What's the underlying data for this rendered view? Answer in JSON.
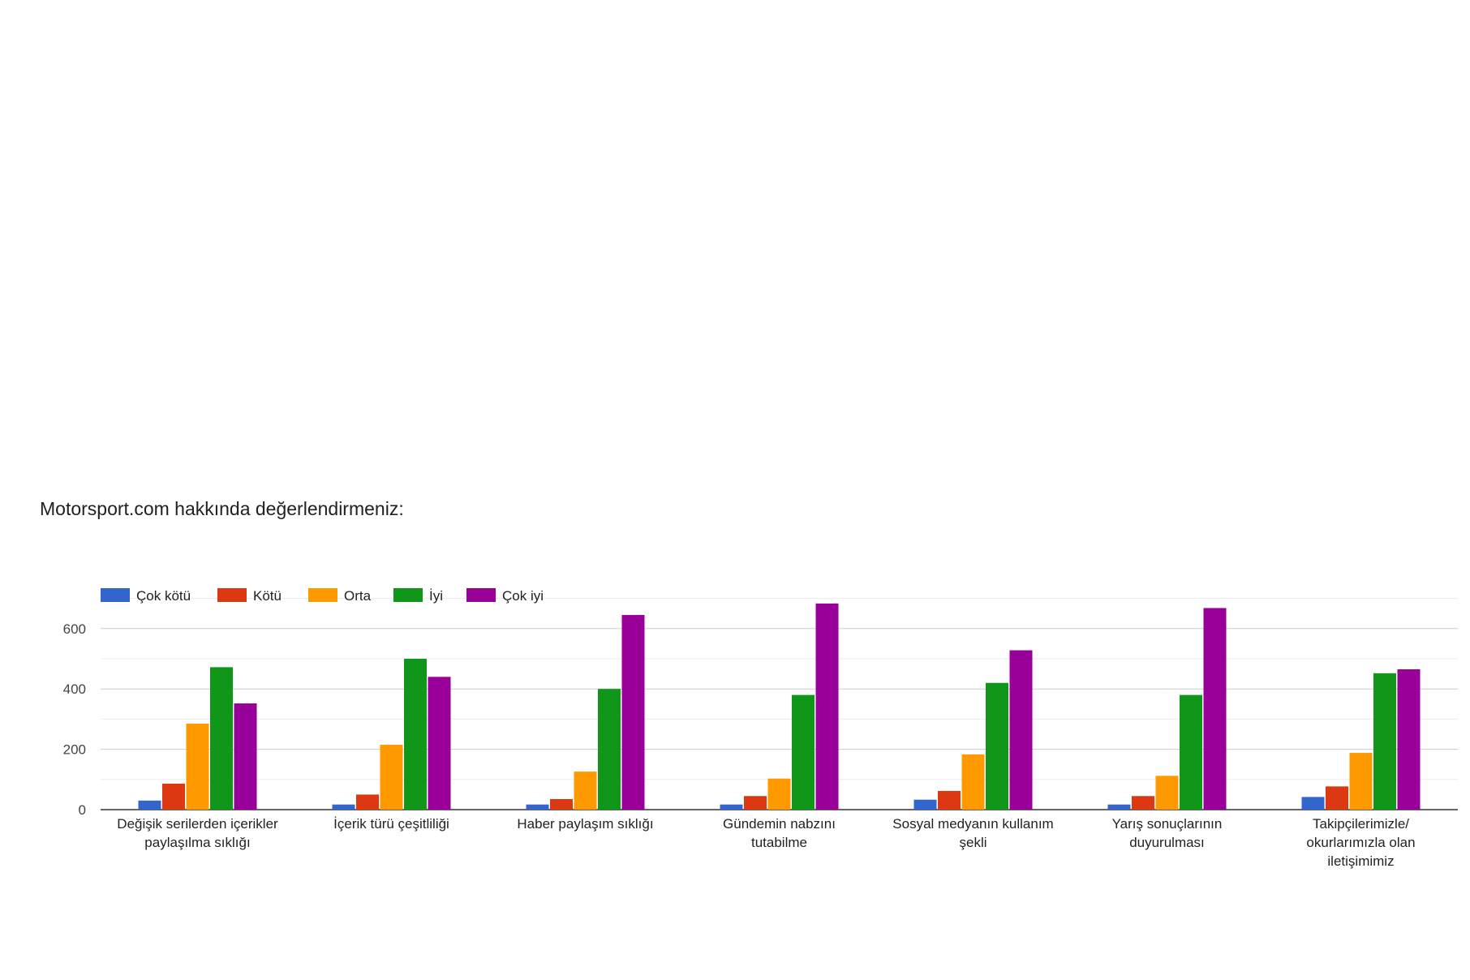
{
  "title": "Motorsport.com hakkında değerlendirmeniz:",
  "chart_data": {
    "type": "bar",
    "categories": [
      [
        "Değişik serilerden içerikler",
        "paylaşılma sıklığı"
      ],
      [
        "İçerik türü çeşitliliği"
      ],
      [
        "Haber paylaşım sıklığı"
      ],
      [
        "Gündemin nabzını",
        "tutabilme"
      ],
      [
        "Sosyal medyanın kullanım",
        "şekli"
      ],
      [
        "Yarış sonuçlarının",
        "duyurulması"
      ],
      [
        "Takipçilerimizle/",
        "okurlarımızla olan",
        "iletişimimiz"
      ]
    ],
    "series": [
      {
        "name": "Çok kötü",
        "color": "#3366cc",
        "values": [
          30,
          17,
          17,
          17,
          33,
          17,
          42
        ]
      },
      {
        "name": "Kötü",
        "color": "#dc3912",
        "values": [
          86,
          50,
          35,
          45,
          62,
          45,
          77
        ]
      },
      {
        "name": "Orta",
        "color": "#ff9900",
        "values": [
          285,
          215,
          126,
          103,
          183,
          112,
          188
        ]
      },
      {
        "name": "İyi",
        "color": "#109618",
        "values": [
          472,
          500,
          400,
          380,
          420,
          380,
          452
        ]
      },
      {
        "name": "Çok iyi",
        "color": "#990099",
        "values": [
          352,
          440,
          645,
          683,
          528,
          668,
          465
        ]
      }
    ],
    "y_ticks": [
      0,
      200,
      400,
      600
    ],
    "ylim": [
      0,
      700
    ],
    "xlabel": "",
    "ylabel": "",
    "grid": true,
    "legend_position": "top-left"
  }
}
